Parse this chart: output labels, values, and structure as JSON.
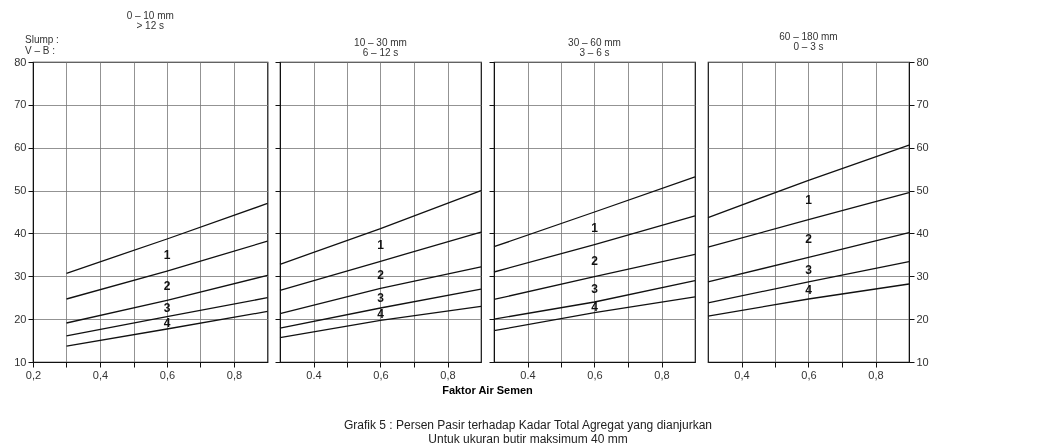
{
  "chart_data": [
    {
      "type": "line",
      "title": "0 – 10 mm",
      "subtitle": "> 12 s",
      "annotations": [
        "Slump :",
        "V – B :",
        "1",
        "2",
        "3",
        "4"
      ],
      "xlim": [
        0.2,
        0.9
      ],
      "xticks": [
        {
          "value": 0.2,
          "label": "0,2"
        },
        {
          "value": 0.3,
          "label": null
        },
        {
          "value": 0.4,
          "label": "0,4"
        },
        {
          "value": 0.5,
          "label": null
        },
        {
          "value": 0.6,
          "label": "0,6"
        },
        {
          "value": 0.7,
          "label": null
        },
        {
          "value": 0.8,
          "label": "0,8"
        }
      ],
      "ylim": [
        10,
        80
      ],
      "yticks": [
        10,
        20,
        30,
        40,
        50,
        60,
        70,
        80
      ],
      "grid": true,
      "marker": "none",
      "line_style": "solid",
      "series": [
        {
          "color": "#111111",
          "x": [
            0.3,
            0.6,
            0.9
          ],
          "values": [
            30.7,
            38.7,
            47
          ]
        },
        {
          "color": "#111111",
          "x": [
            0.3,
            0.6,
            0.9
          ],
          "values": [
            24.7,
            31.2,
            38.2
          ]
        },
        {
          "color": "#111111",
          "x": [
            0.3,
            0.6,
            0.9
          ],
          "values": [
            19.1,
            24.4,
            30.2
          ]
        },
        {
          "color": "#111111",
          "x": [
            0.3,
            0.6,
            0.9
          ],
          "values": [
            16.1,
            20.6,
            25
          ]
        },
        {
          "color": "#111111",
          "x": [
            0.3,
            0.6,
            0.9
          ],
          "values": [
            13.7,
            17.7,
            21.8
          ]
        }
      ]
    },
    {
      "type": "line",
      "title": "10 – 30 mm",
      "subtitle": "6 – 12 s",
      "xlabel": "Faktor Air Semen",
      "annotations": [
        "Grafik 5 :  Persen Pasir terhadap Kadar Total Agregat yang dianjurkan",
        "Untuk ukuran butir maksimum  40 mm",
        "1",
        "2",
        "3",
        "4"
      ],
      "xlim": [
        0.3,
        0.9
      ],
      "xticks": [
        0.4,
        {
          "value": 0.5,
          "label": null
        },
        {
          "value": 0.6,
          "label": "0,6"
        },
        {
          "value": 0.7,
          "label": null
        },
        {
          "value": 0.8,
          "label": "0,8"
        }
      ],
      "ylim": [
        10,
        80
      ],
      "yticks": [
        {
          "value": 10,
          "label": null
        },
        {
          "value": 20,
          "label": null
        },
        {
          "value": 30,
          "label": null
        },
        {
          "value": 40,
          "label": null
        },
        {
          "value": 50,
          "label": null
        },
        {
          "value": 60,
          "label": null
        },
        {
          "value": 70,
          "label": null
        },
        {
          "value": 80,
          "label": null
        }
      ],
      "tick_labels": "x",
      "grid": true,
      "marker": "none",
      "line_style": "solid",
      "series": [
        {
          "color": "#111111",
          "x": [
            0.3,
            0.6,
            0.9
          ],
          "values": [
            32.8,
            41.1,
            50
          ]
        },
        {
          "color": "#111111",
          "x": [
            0.3,
            0.6,
            0.9
          ],
          "values": [
            26.7,
            33.5,
            40.3
          ]
        },
        {
          "color": "#111111",
          "x": [
            0.3,
            0.6,
            0.9
          ],
          "values": [
            21.3,
            27.2,
            32.2
          ]
        },
        {
          "color": "#111111",
          "x": [
            0.3,
            0.6,
            0.9
          ],
          "values": [
            17.9,
            22.6,
            27
          ]
        },
        {
          "color": "#111111",
          "x": [
            0.3,
            0.6,
            0.9
          ],
          "values": [
            15.7,
            19.7,
            23
          ]
        }
      ]
    },
    {
      "type": "line",
      "title": "30 – 60 mm",
      "subtitle": "3 – 6 s",
      "annotations": [
        "1",
        "2",
        "3",
        "4"
      ],
      "xlim": [
        0.3,
        0.9
      ],
      "xticks": [
        0.4,
        {
          "value": 0.5,
          "label": null
        },
        {
          "value": 0.6,
          "label": "0,6"
        },
        {
          "value": 0.7,
          "label": null
        },
        {
          "value": 0.8,
          "label": "0,8"
        }
      ],
      "ylim": [
        10,
        80
      ],
      "yticks": [
        {
          "value": 10,
          "label": null
        },
        {
          "value": 20,
          "label": null
        },
        {
          "value": 30,
          "label": null
        },
        {
          "value": 40,
          "label": null
        },
        {
          "value": 50,
          "label": null
        },
        {
          "value": 60,
          "label": null
        },
        {
          "value": 70,
          "label": null
        },
        {
          "value": 80,
          "label": null
        }
      ],
      "tick_labels": "x",
      "grid": true,
      "marker": "none",
      "line_style": "solid",
      "series": [
        {
          "color": "#111111",
          "x": [
            0.3,
            0.6,
            0.9
          ],
          "values": [
            36.9,
            45,
            53.2
          ]
        },
        {
          "color": "#111111",
          "x": [
            0.3,
            0.6,
            0.9
          ],
          "values": [
            31,
            37.4,
            44.1
          ]
        },
        {
          "color": "#111111",
          "x": [
            0.3,
            0.6,
            0.9
          ],
          "values": [
            24.6,
            29.9,
            35.1
          ]
        },
        {
          "color": "#111111",
          "x": [
            0.3,
            0.6,
            0.9
          ],
          "values": [
            20,
            24,
            29
          ]
        },
        {
          "color": "#111111",
          "x": [
            0.3,
            0.6,
            0.9
          ],
          "values": [
            17.3,
            21.5,
            25.2
          ]
        }
      ]
    },
    {
      "type": "line",
      "title": "60 – 180 mm",
      "subtitle": "0 – 3 s",
      "annotations": [
        "1",
        "2",
        "3",
        "4"
      ],
      "xlim": [
        0.3,
        0.9
      ],
      "xticks": [
        {
          "value": 0.4,
          "label": "0,4"
        },
        {
          "value": 0.5,
          "label": null
        },
        {
          "value": 0.6,
          "label": "0,6"
        },
        {
          "value": 0.7,
          "label": null
        },
        {
          "value": 0.8,
          "label": "0,8"
        }
      ],
      "ylim": [
        10,
        80
      ],
      "yticks": [
        10,
        20,
        30,
        40,
        50,
        60,
        70,
        80
      ],
      "grid": true,
      "marker": "none",
      "line_style": "solid",
      "series": [
        {
          "color": "#111111",
          "x": [
            0.3,
            0.6,
            0.9
          ],
          "values": [
            43.7,
            52.4,
            60.6
          ]
        },
        {
          "color": "#111111",
          "x": [
            0.3,
            0.6,
            0.9
          ],
          "values": [
            36.8,
            43.2,
            49.5
          ]
        },
        {
          "color": "#111111",
          "x": [
            0.3,
            0.6,
            0.9
          ],
          "values": [
            28.7,
            34.4,
            40.2
          ]
        },
        {
          "color": "#111111",
          "x": [
            0.3,
            0.6,
            0.9
          ],
          "values": [
            23.8,
            28.7,
            33.4
          ]
        },
        {
          "color": "#111111",
          "x": [
            0.3,
            0.6,
            0.9
          ],
          "values": [
            20.7,
            24.7,
            28.2
          ]
        }
      ]
    }
  ]
}
